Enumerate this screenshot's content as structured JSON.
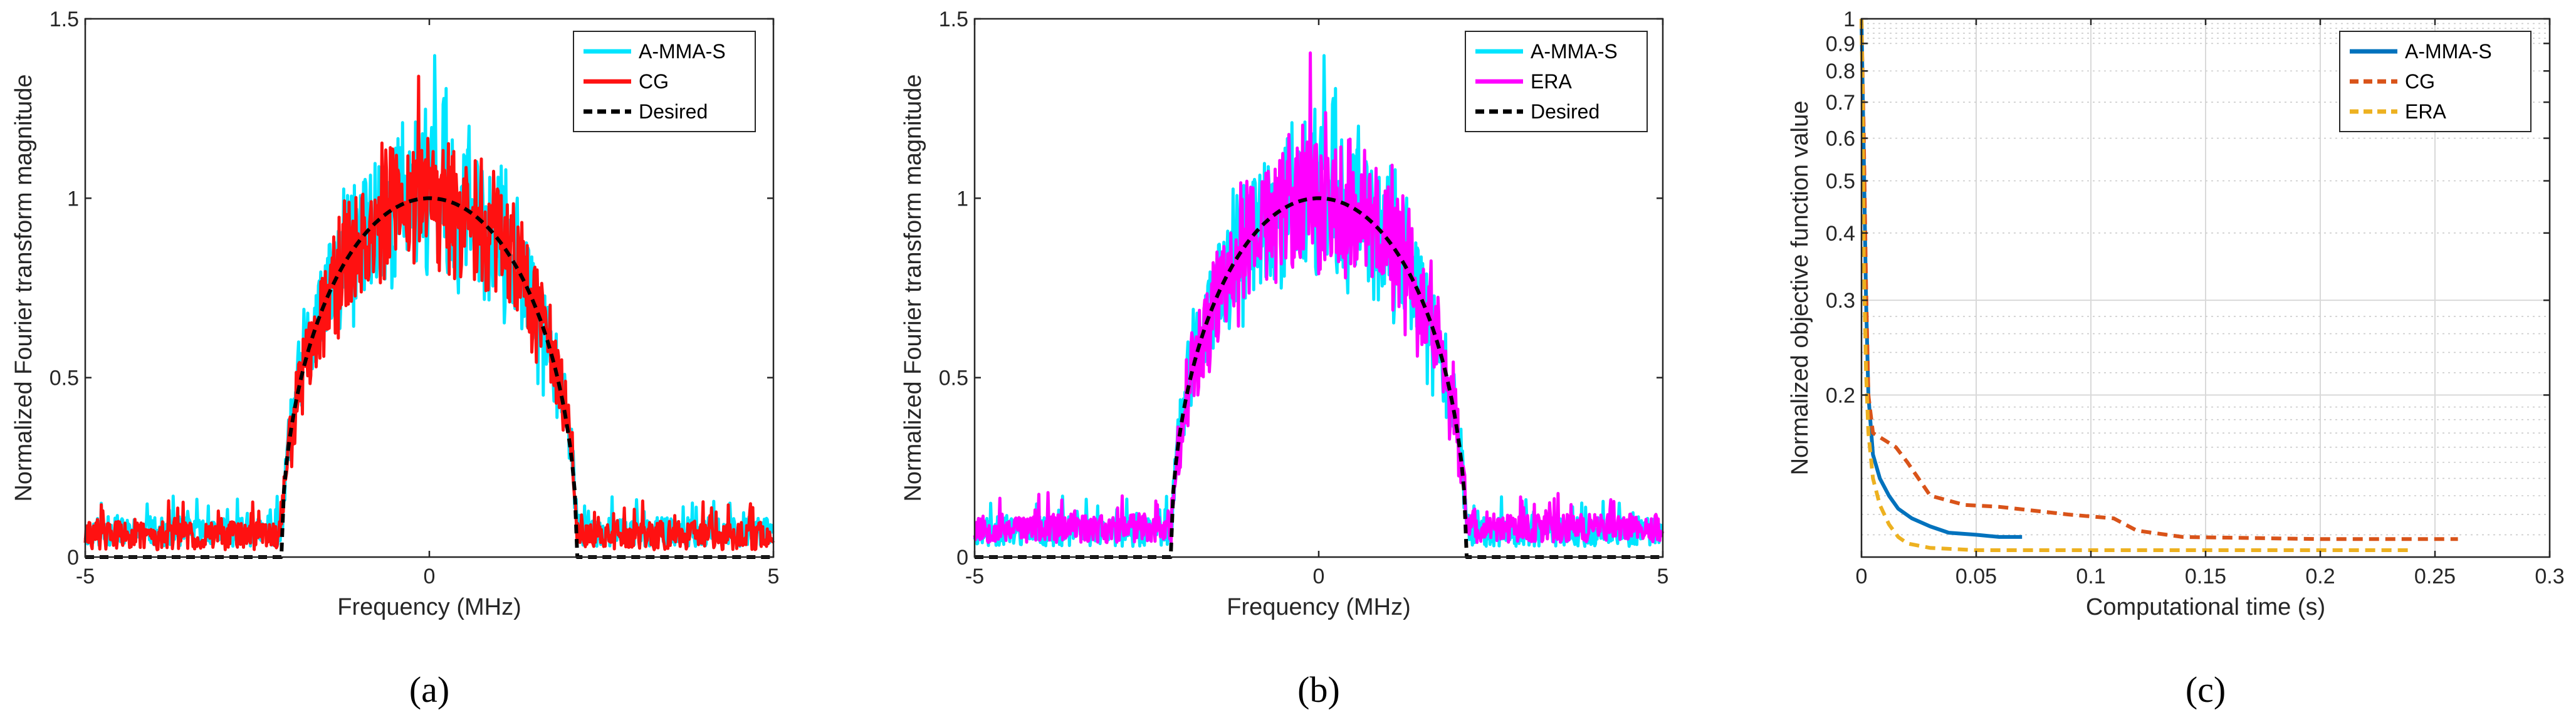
{
  "chart_data": [
    {
      "id": "a",
      "type": "line",
      "caption": "(a)",
      "xlabel": "Frequency (MHz)",
      "ylabel": "Normalized Fourier transform magnitude",
      "xlim": [
        -5,
        5
      ],
      "ylim": [
        0,
        1.5
      ],
      "xticks": [
        -5,
        0,
        5
      ],
      "yticks": [
        0,
        0.5,
        1,
        1.5
      ],
      "legend_position": "top-right",
      "band_edge": 2.15,
      "series": [
        {
          "name": "A-MMA-S",
          "color": "#00e5ff",
          "style": "noisy-band",
          "noise": 0.15,
          "outside_level": 0.07,
          "seed": 11
        },
        {
          "name": "CG",
          "color": "#ff1111",
          "style": "noisy-band",
          "noise": 0.12,
          "outside_level": 0.06,
          "seed": 29
        },
        {
          "name": "Desired",
          "color": "#000000",
          "style": "desired",
          "dash": true
        }
      ]
    },
    {
      "id": "b",
      "type": "line",
      "caption": "(b)",
      "xlabel": "Frequency (MHz)",
      "ylabel": "Normalized Fourier transform magnitude",
      "xlim": [
        -5,
        5
      ],
      "ylim": [
        0,
        1.5
      ],
      "xticks": [
        -5,
        0,
        5
      ],
      "yticks": [
        0,
        0.5,
        1,
        1.5
      ],
      "legend_position": "top-right",
      "band_edge": 2.15,
      "series": [
        {
          "name": "A-MMA-S",
          "color": "#00e5ff",
          "style": "noisy-band",
          "noise": 0.15,
          "outside_level": 0.07,
          "seed": 11
        },
        {
          "name": "ERA",
          "color": "#ff00ff",
          "style": "noisy-band",
          "noise": 0.14,
          "outside_level": 0.08,
          "seed": 53
        },
        {
          "name": "Desired",
          "color": "#000000",
          "style": "desired",
          "dash": true
        }
      ]
    },
    {
      "id": "c",
      "type": "line",
      "caption": "(c)",
      "xlabel": "Computational time (s)",
      "ylabel": "Normalized objective function value",
      "xlim": [
        0,
        0.3
      ],
      "ylim": [
        0.1,
        1
      ],
      "yscale": "log",
      "xticks": [
        0,
        0.05,
        0.1,
        0.15,
        0.2,
        0.25,
        0.3
      ],
      "xtick_labels": [
        "0",
        "0.05",
        "0.1",
        "0.15",
        "0.2",
        "0.25",
        "0.3"
      ],
      "yticks": [
        0.2,
        0.3,
        0.4,
        0.5,
        0.6,
        0.7,
        0.8,
        0.9,
        1
      ],
      "ytick_labels": [
        "0.2",
        "0.3",
        "0.4",
        "0.5",
        "0.6",
        "0.7",
        "0.8",
        "0.9",
        "1"
      ],
      "legend_position": "top-right",
      "series": [
        {
          "name": "A-MMA-S",
          "color": "#0072bd",
          "dash": false,
          "x": [
            0,
            0.001,
            0.002,
            0.003,
            0.005,
            0.008,
            0.012,
            0.016,
            0.022,
            0.03,
            0.038,
            0.05,
            0.06,
            0.07
          ],
          "y": [
            1,
            0.55,
            0.3,
            0.2,
            0.155,
            0.14,
            0.13,
            0.123,
            0.118,
            0.114,
            0.111,
            0.11,
            0.109,
            0.109
          ]
        },
        {
          "name": "CG",
          "color": "#d95319",
          "dash": true,
          "x": [
            0,
            0.001,
            0.002,
            0.003,
            0.005,
            0.01,
            0.015,
            0.02,
            0.03,
            0.045,
            0.06,
            0.09,
            0.11,
            0.12,
            0.14,
            0.2,
            0.26
          ],
          "y": [
            1,
            0.6,
            0.32,
            0.2,
            0.17,
            0.165,
            0.16,
            0.15,
            0.13,
            0.125,
            0.124,
            0.12,
            0.118,
            0.112,
            0.109,
            0.108,
            0.108
          ]
        },
        {
          "name": "ERA",
          "color": "#edb120",
          "dash": true,
          "x": [
            0,
            0.0005,
            0.001,
            0.002,
            0.003,
            0.005,
            0.008,
            0.012,
            0.016,
            0.02,
            0.03,
            0.05,
            0.1,
            0.15,
            0.2,
            0.24
          ],
          "y": [
            1,
            0.7,
            0.35,
            0.22,
            0.17,
            0.14,
            0.125,
            0.115,
            0.109,
            0.106,
            0.104,
            0.103,
            0.103,
            0.103,
            0.103,
            0.103
          ]
        }
      ]
    }
  ]
}
